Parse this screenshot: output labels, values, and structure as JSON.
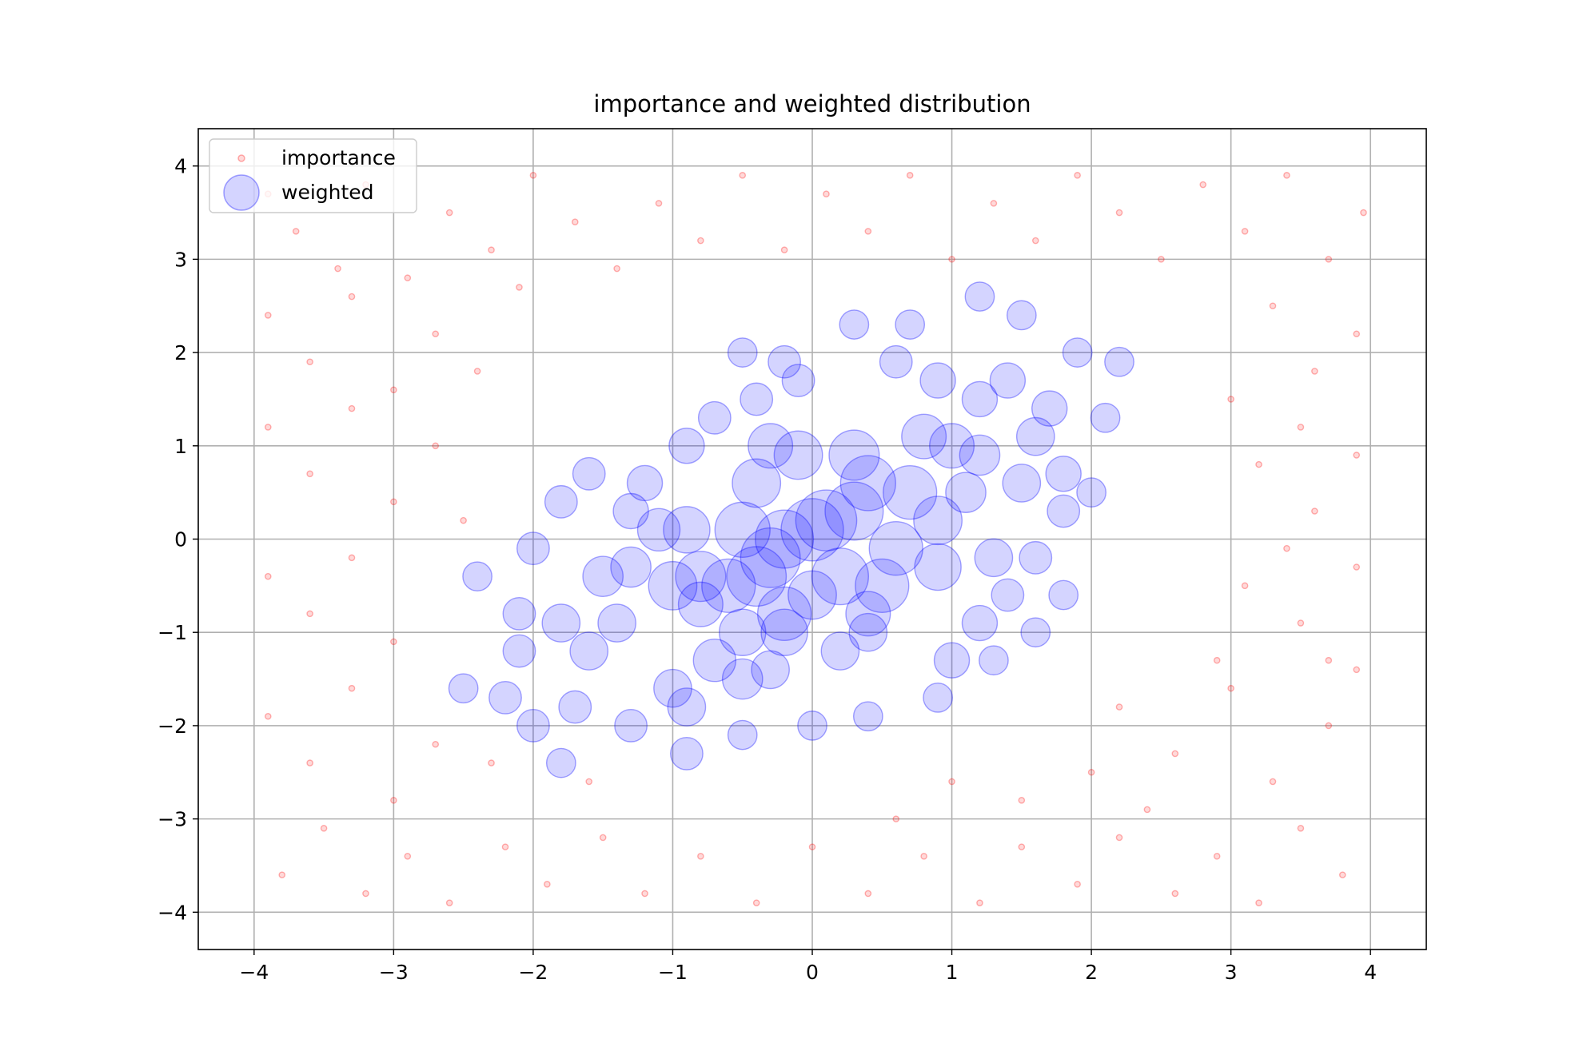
{
  "chart_data": {
    "type": "scatter",
    "title": "importance and weighted distribution",
    "xlabel": "",
    "ylabel": "",
    "xlim": [
      -4.4,
      4.4
    ],
    "ylim": [
      -4.4,
      4.4
    ],
    "xticks": [
      -4,
      -3,
      -2,
      -1,
      0,
      1,
      2,
      3,
      4
    ],
    "yticks": [
      -4,
      -3,
      -2,
      -1,
      0,
      1,
      2,
      3,
      4
    ],
    "xtick_labels": [
      "−4",
      "−3",
      "−2",
      "−1",
      "0",
      "1",
      "2",
      "3",
      "4"
    ],
    "ytick_labels": [
      "−4",
      "−3",
      "−2",
      "−1",
      "0",
      "1",
      "2",
      "3",
      "4"
    ],
    "grid": true,
    "legend": {
      "placement": "top-left",
      "entries": [
        "importance",
        "weighted"
      ]
    },
    "series": [
      {
        "name": "importance",
        "color": "#ff0000",
        "alpha": 0.15,
        "marker": "hollow small circle",
        "distribution": "uniform over [-4, 4] x [-4, 4]",
        "points": [
          [
            -3.9,
            3.7
          ],
          [
            -3.7,
            3.3
          ],
          [
            -3.4,
            2.9
          ],
          [
            -3.2,
            3.8
          ],
          [
            -2.9,
            2.8
          ],
          [
            -2.6,
            3.5
          ],
          [
            -2.3,
            3.1
          ],
          [
            -2.0,
            3.9
          ],
          [
            -1.7,
            3.4
          ],
          [
            -1.4,
            2.9
          ],
          [
            -1.1,
            3.6
          ],
          [
            -0.8,
            3.2
          ],
          [
            -0.5,
            3.9
          ],
          [
            -0.2,
            3.1
          ],
          [
            0.1,
            3.7
          ],
          [
            0.4,
            3.3
          ],
          [
            0.7,
            3.9
          ],
          [
            1.0,
            3.0
          ],
          [
            1.3,
            3.6
          ],
          [
            1.6,
            3.2
          ],
          [
            1.9,
            3.9
          ],
          [
            2.2,
            3.5
          ],
          [
            2.5,
            3.0
          ],
          [
            2.8,
            3.8
          ],
          [
            3.1,
            3.3
          ],
          [
            3.4,
            3.9
          ],
          [
            3.7,
            3.0
          ],
          [
            3.95,
            3.5
          ],
          [
            -3.9,
            2.4
          ],
          [
            -3.6,
            1.9
          ],
          [
            -3.3,
            2.6
          ],
          [
            -3.0,
            1.6
          ],
          [
            -2.7,
            2.2
          ],
          [
            -2.4,
            1.8
          ],
          [
            -2.1,
            2.7
          ],
          [
            3.3,
            2.5
          ],
          [
            3.6,
            1.8
          ],
          [
            3.9,
            2.2
          ],
          [
            3.0,
            1.5
          ],
          [
            3.5,
            1.2
          ],
          [
            -3.9,
            1.2
          ],
          [
            -3.6,
            0.7
          ],
          [
            -3.3,
            1.4
          ],
          [
            -3.0,
            0.4
          ],
          [
            -2.7,
            1.0
          ],
          [
            -2.5,
            0.2
          ],
          [
            3.2,
            0.8
          ],
          [
            3.6,
            0.3
          ],
          [
            3.9,
            0.9
          ],
          [
            3.4,
            -0.1
          ],
          [
            -3.9,
            -0.4
          ],
          [
            -3.6,
            -0.8
          ],
          [
            -3.3,
            -0.2
          ],
          [
            -3.0,
            -1.1
          ],
          [
            3.1,
            -0.5
          ],
          [
            3.5,
            -0.9
          ],
          [
            3.9,
            -0.3
          ],
          [
            3.7,
            -1.3
          ],
          [
            -3.9,
            -1.9
          ],
          [
            -3.6,
            -2.4
          ],
          [
            -3.3,
            -1.6
          ],
          [
            -3.0,
            -2.8
          ],
          [
            -2.7,
            -2.2
          ],
          [
            2.2,
            -1.8
          ],
          [
            2.6,
            -2.3
          ],
          [
            3.0,
            -1.6
          ],
          [
            3.3,
            -2.6
          ],
          [
            3.7,
            -2.0
          ],
          [
            3.9,
            -1.4
          ],
          [
            2.4,
            -2.9
          ],
          [
            2.9,
            -1.3
          ],
          [
            -3.8,
            -3.6
          ],
          [
            -3.5,
            -3.1
          ],
          [
            -3.2,
            -3.8
          ],
          [
            -2.9,
            -3.4
          ],
          [
            -2.6,
            -3.9
          ],
          [
            -2.2,
            -3.3
          ],
          [
            -1.9,
            -3.7
          ],
          [
            -1.5,
            -3.2
          ],
          [
            -1.2,
            -3.8
          ],
          [
            -0.8,
            -3.4
          ],
          [
            -0.4,
            -3.9
          ],
          [
            0.0,
            -3.3
          ],
          [
            0.4,
            -3.8
          ],
          [
            0.8,
            -3.4
          ],
          [
            1.2,
            -3.9
          ],
          [
            1.5,
            -3.3
          ],
          [
            1.9,
            -3.7
          ],
          [
            2.2,
            -3.2
          ],
          [
            2.6,
            -3.8
          ],
          [
            2.9,
            -3.4
          ],
          [
            3.2,
            -3.9
          ],
          [
            3.5,
            -3.1
          ],
          [
            3.8,
            -3.6
          ],
          [
            2.0,
            -2.5
          ],
          [
            1.5,
            -2.8
          ],
          [
            1.0,
            -2.6
          ],
          [
            0.6,
            -3.0
          ],
          [
            -1.6,
            -2.6
          ],
          [
            -2.3,
            -2.4
          ]
        ]
      },
      {
        "name": "weighted",
        "color": "#0000ff",
        "alpha": 0.17,
        "marker": "circle sized by weight",
        "distribution": "weighted points concentrated near (0, 0)",
        "points": [
          [
            0.0,
            0.1,
            1.0
          ],
          [
            0.1,
            0.2,
            0.95
          ],
          [
            -0.3,
            -0.2,
            0.9
          ],
          [
            0.3,
            0.3,
            0.85
          ],
          [
            -0.4,
            -0.4,
            0.9
          ],
          [
            0.2,
            -0.4,
            0.8
          ],
          [
            -0.2,
            0.0,
            0.85
          ],
          [
            0.4,
            0.6,
            0.75
          ],
          [
            -0.5,
            0.1,
            0.75
          ],
          [
            0.6,
            -0.1,
            0.7
          ],
          [
            -0.6,
            -0.5,
            0.7
          ],
          [
            0.7,
            0.5,
            0.7
          ],
          [
            -0.2,
            -0.8,
            0.7
          ],
          [
            0.5,
            -0.5,
            0.7
          ],
          [
            -0.8,
            -0.4,
            0.6
          ],
          [
            0.3,
            0.9,
            0.6
          ],
          [
            -0.1,
            0.9,
            0.55
          ],
          [
            0.9,
            0.2,
            0.55
          ],
          [
            -1.0,
            -0.5,
            0.55
          ],
          [
            -0.9,
            0.1,
            0.5
          ],
          [
            0.9,
            -0.3,
            0.5
          ],
          [
            -0.4,
            0.6,
            0.55
          ],
          [
            1.0,
            1.0,
            0.45
          ],
          [
            0.8,
            1.1,
            0.45
          ],
          [
            -0.3,
            1.0,
            0.45
          ],
          [
            -0.5,
            -1.0,
            0.5
          ],
          [
            -0.2,
            -1.0,
            0.5
          ],
          [
            0.0,
            -0.6,
            0.55
          ],
          [
            0.4,
            -0.8,
            0.45
          ],
          [
            -0.8,
            -0.7,
            0.45
          ],
          [
            -1.1,
            0.1,
            0.4
          ],
          [
            -1.3,
            -0.3,
            0.35
          ],
          [
            -1.5,
            -0.4,
            0.35
          ],
          [
            -1.4,
            -0.9,
            0.3
          ],
          [
            -1.6,
            -1.2,
            0.3
          ],
          [
            -1.8,
            -0.9,
            0.3
          ],
          [
            -0.7,
            -1.3,
            0.4
          ],
          [
            -0.5,
            -1.5,
            0.35
          ],
          [
            -0.3,
            -1.4,
            0.3
          ],
          [
            -1.0,
            -1.6,
            0.3
          ],
          [
            -0.9,
            -1.8,
            0.3
          ],
          [
            0.2,
            -1.2,
            0.3
          ],
          [
            0.4,
            -1.0,
            0.3
          ],
          [
            1.1,
            0.5,
            0.35
          ],
          [
            1.2,
            0.9,
            0.35
          ],
          [
            1.3,
            -0.2,
            0.3
          ],
          [
            1.5,
            0.6,
            0.3
          ],
          [
            1.6,
            1.1,
            0.3
          ],
          [
            1.8,
            0.7,
            0.25
          ],
          [
            1.7,
            1.4,
            0.25
          ],
          [
            1.2,
            1.5,
            0.25
          ],
          [
            1.4,
            1.7,
            0.25
          ],
          [
            0.9,
            1.7,
            0.25
          ],
          [
            0.6,
            1.9,
            0.2
          ],
          [
            -0.1,
            1.7,
            0.2
          ],
          [
            -0.4,
            1.5,
            0.2
          ],
          [
            -0.7,
            1.3,
            0.2
          ],
          [
            -0.9,
            1.0,
            0.25
          ],
          [
            -1.2,
            0.6,
            0.25
          ],
          [
            -1.3,
            0.3,
            0.25
          ],
          [
            -1.6,
            0.7,
            0.2
          ],
          [
            -1.8,
            0.4,
            0.2
          ],
          [
            -2.0,
            -0.1,
            0.2
          ],
          [
            -2.1,
            -0.8,
            0.2
          ],
          [
            -2.1,
            -1.2,
            0.2
          ],
          [
            -2.2,
            -1.7,
            0.2
          ],
          [
            -2.0,
            -2.0,
            0.2
          ],
          [
            -1.7,
            -1.8,
            0.2
          ],
          [
            -1.3,
            -2.0,
            0.2
          ],
          [
            -0.9,
            -2.3,
            0.2
          ],
          [
            1.0,
            -1.3,
            0.25
          ],
          [
            1.2,
            -0.9,
            0.25
          ],
          [
            1.4,
            -0.6,
            0.2
          ],
          [
            1.6,
            -0.2,
            0.2
          ],
          [
            1.8,
            0.3,
            0.2
          ],
          [
            2.0,
            0.5,
            0.15
          ],
          [
            2.1,
            1.3,
            0.15
          ],
          [
            2.2,
            1.9,
            0.15
          ],
          [
            1.9,
            2.0,
            0.15
          ],
          [
            1.5,
            2.4,
            0.15
          ],
          [
            1.2,
            2.6,
            0.15
          ],
          [
            0.7,
            2.3,
            0.15
          ],
          [
            0.3,
            2.3,
            0.15
          ],
          [
            -0.2,
            1.9,
            0.2
          ],
          [
            -0.5,
            2.0,
            0.15
          ],
          [
            1.8,
            -0.6,
            0.15
          ],
          [
            1.6,
            -1.0,
            0.15
          ],
          [
            1.3,
            -1.3,
            0.15
          ],
          [
            0.9,
            -1.7,
            0.15
          ],
          [
            0.4,
            -1.9,
            0.15
          ],
          [
            0.0,
            -2.0,
            0.15
          ],
          [
            -0.5,
            -2.1,
            0.15
          ],
          [
            -1.8,
            -2.4,
            0.15
          ],
          [
            -2.5,
            -1.6,
            0.15
          ],
          [
            -2.4,
            -0.4,
            0.15
          ]
        ]
      }
    ]
  }
}
